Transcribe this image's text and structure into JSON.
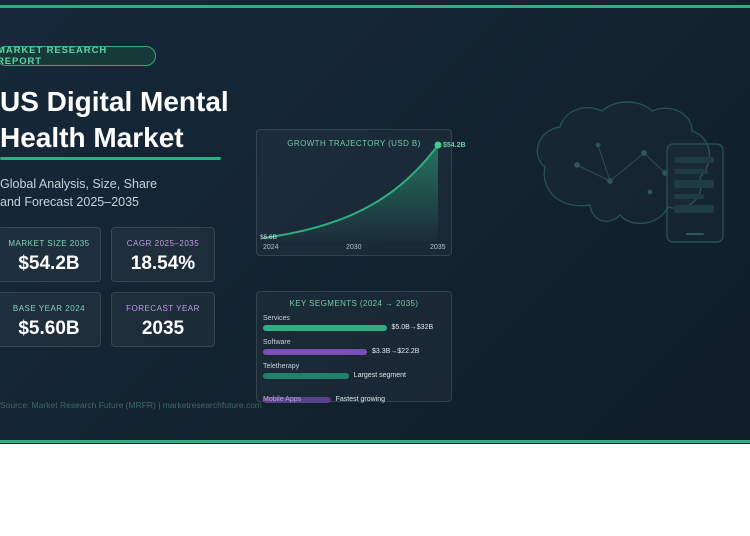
{
  "header": {
    "badge": "MARKET RESEARCH REPORT",
    "title_line1": "US Digital Mental",
    "title_line2": "Health Market",
    "subtitle_line1": "Global Analysis, Size, Share",
    "subtitle_line2": "and Forecast 2025–2035"
  },
  "stats": [
    {
      "label": "MARKET SIZE 2035",
      "value": "$54.2B"
    },
    {
      "label": "CAGR 2025–2035",
      "value": "18.54%"
    },
    {
      "label": "BASE YEAR 2024",
      "value": "$5.60B"
    },
    {
      "label": "FORECAST YEAR",
      "value": "2035"
    }
  ],
  "source": "Source: Market Research Future (MRFR) | marketresearchfuture.com",
  "colors": {
    "accent": "#2fae7f",
    "purple": "#7b4fb8",
    "background": "#14263a"
  },
  "icons": [
    "brain-icon",
    "smartphone-icon"
  ],
  "chart_data": [
    {
      "type": "area",
      "title": "GROWTH TRAJECTORY (USD B)",
      "x": [
        2024,
        2035
      ],
      "values": [
        5.6,
        54.2
      ],
      "x_ticks": [
        "2024",
        "2030",
        "2035"
      ],
      "start_label": "$5.6B",
      "end_label": "$54.2B",
      "grid": false
    },
    {
      "type": "bar",
      "title": "KEY SEGMENTS (2024 → 2035)",
      "categories": [
        "Services",
        "Software",
        "Teletherapy",
        "Mobile Apps"
      ],
      "values": [
        0.95,
        0.8,
        0.66,
        0.52
      ],
      "notes": [
        "$5.0B→$32B",
        "$3.3B→$22.2B",
        "Largest segment",
        "Fastest growing"
      ],
      "colors": [
        "#2fae7f",
        "#7b4fb8",
        "#22806a",
        "#5a3f8a"
      ]
    }
  ]
}
